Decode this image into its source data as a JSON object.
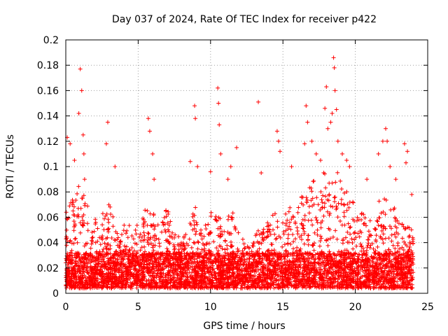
{
  "chart_data": {
    "type": "scatter",
    "title": "Day 037 of 2024, Rate Of TEC Index for receiver p422",
    "xlabel": "GPS time / hours",
    "ylabel": "ROTI / TECUs",
    "xlim": [
      0,
      25
    ],
    "ylim": [
      0,
      0.2
    ],
    "xticks": [
      0,
      5,
      10,
      15,
      20,
      25
    ],
    "xtick_labels": [
      "0",
      "5",
      "10",
      "15",
      "20",
      "25"
    ],
    "yticks": [
      0,
      0.02,
      0.04,
      0.06,
      0.08,
      0.1,
      0.12,
      0.14,
      0.16,
      0.18,
      0.2
    ],
    "ytick_labels": [
      "0",
      "0.02",
      "0.04",
      "0.06",
      "0.08",
      "0.1",
      "0.12",
      "0.14",
      "0.16",
      "0.18",
      "0.2"
    ],
    "grid": true,
    "marker": "plus",
    "color": "#ff0000",
    "data_extent_x": [
      0,
      24
    ],
    "envelope": [
      [
        0.0,
        0.075
      ],
      [
        0.5,
        0.07
      ],
      [
        1.0,
        0.09
      ],
      [
        1.5,
        0.065
      ],
      [
        2.0,
        0.055
      ],
      [
        2.5,
        0.06
      ],
      [
        3.0,
        0.07
      ],
      [
        3.5,
        0.045
      ],
      [
        4.0,
        0.05
      ],
      [
        4.5,
        0.055
      ],
      [
        5.0,
        0.05
      ],
      [
        5.5,
        0.065
      ],
      [
        6.0,
        0.06
      ],
      [
        6.5,
        0.05
      ],
      [
        7.0,
        0.065
      ],
      [
        7.5,
        0.045
      ],
      [
        8.0,
        0.04
      ],
      [
        8.5,
        0.05
      ],
      [
        9.0,
        0.065
      ],
      [
        9.5,
        0.05
      ],
      [
        10.0,
        0.06
      ],
      [
        10.5,
        0.06
      ],
      [
        11.0,
        0.055
      ],
      [
        11.5,
        0.065
      ],
      [
        12.0,
        0.04
      ],
      [
        12.5,
        0.04
      ],
      [
        13.0,
        0.04
      ],
      [
        13.5,
        0.05
      ],
      [
        14.0,
        0.055
      ],
      [
        14.5,
        0.06
      ],
      [
        15.0,
        0.06
      ],
      [
        15.5,
        0.065
      ],
      [
        16.0,
        0.075
      ],
      [
        16.5,
        0.08
      ],
      [
        17.0,
        0.085
      ],
      [
        17.5,
        0.085
      ],
      [
        18.0,
        0.095
      ],
      [
        18.5,
        0.095
      ],
      [
        19.0,
        0.09
      ],
      [
        19.5,
        0.075
      ],
      [
        20.0,
        0.065
      ],
      [
        20.5,
        0.06
      ],
      [
        21.0,
        0.055
      ],
      [
        21.5,
        0.07
      ],
      [
        22.0,
        0.075
      ],
      [
        22.5,
        0.07
      ],
      [
        23.0,
        0.055
      ],
      [
        23.5,
        0.05
      ],
      [
        24.0,
        0.05
      ]
    ],
    "points": [
      [
        0.1,
        0.123
      ],
      [
        0.3,
        0.118
      ],
      [
        0.6,
        0.105
      ],
      [
        0.9,
        0.142
      ],
      [
        1.0,
        0.177
      ],
      [
        1.1,
        0.16
      ],
      [
        1.2,
        0.125
      ],
      [
        1.25,
        0.11
      ],
      [
        1.3,
        0.09
      ],
      [
        2.8,
        0.118
      ],
      [
        2.9,
        0.135
      ],
      [
        3.4,
        0.1
      ],
      [
        5.7,
        0.138
      ],
      [
        5.8,
        0.128
      ],
      [
        6.0,
        0.11
      ],
      [
        6.1,
        0.09
      ],
      [
        8.6,
        0.104
      ],
      [
        8.9,
        0.148
      ],
      [
        8.95,
        0.138
      ],
      [
        9.1,
        0.1
      ],
      [
        10.0,
        0.096
      ],
      [
        10.5,
        0.162
      ],
      [
        10.55,
        0.15
      ],
      [
        10.6,
        0.133
      ],
      [
        10.7,
        0.11
      ],
      [
        11.2,
        0.09
      ],
      [
        11.4,
        0.1
      ],
      [
        11.8,
        0.115
      ],
      [
        13.3,
        0.151
      ],
      [
        13.5,
        0.095
      ],
      [
        14.6,
        0.128
      ],
      [
        14.7,
        0.12
      ],
      [
        14.8,
        0.112
      ],
      [
        15.6,
        0.1
      ],
      [
        16.5,
        0.118
      ],
      [
        16.6,
        0.148
      ],
      [
        16.7,
        0.135
      ],
      [
        17.0,
        0.12
      ],
      [
        17.3,
        0.11
      ],
      [
        17.6,
        0.105
      ],
      [
        17.9,
        0.146
      ],
      [
        18.0,
        0.163
      ],
      [
        18.1,
        0.13
      ],
      [
        18.3,
        0.135
      ],
      [
        18.4,
        0.142
      ],
      [
        18.5,
        0.186
      ],
      [
        18.55,
        0.178
      ],
      [
        18.6,
        0.16
      ],
      [
        18.7,
        0.145
      ],
      [
        18.8,
        0.12
      ],
      [
        19.1,
        0.11
      ],
      [
        19.4,
        0.105
      ],
      [
        19.6,
        0.1
      ],
      [
        20.8,
        0.09
      ],
      [
        21.6,
        0.11
      ],
      [
        21.9,
        0.12
      ],
      [
        22.1,
        0.13
      ],
      [
        22.2,
        0.12
      ],
      [
        22.4,
        0.1
      ],
      [
        22.8,
        0.09
      ],
      [
        23.4,
        0.118
      ],
      [
        23.6,
        0.112
      ],
      [
        23.5,
        0.103
      ],
      [
        23.9,
        0.078
      ]
    ]
  }
}
